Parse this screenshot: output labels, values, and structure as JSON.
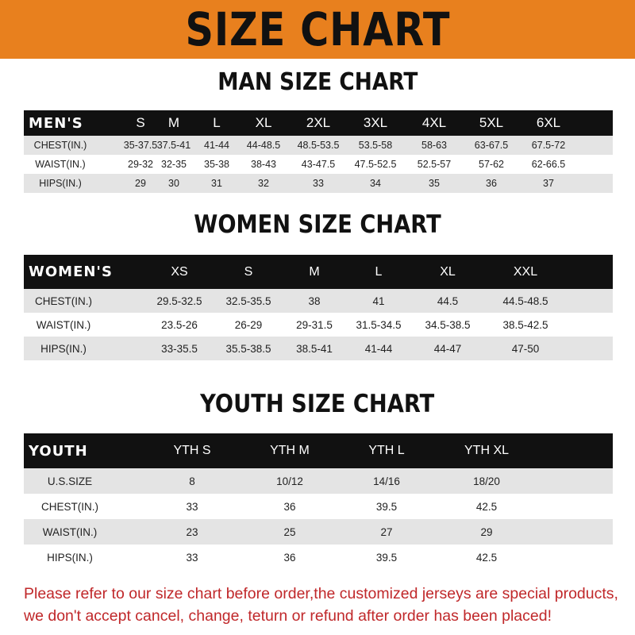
{
  "banner": {
    "title": "SIZE CHART",
    "background": "#e8801e"
  },
  "men": {
    "title": "MAN SIZE CHART",
    "header": [
      "MEN'S",
      "S",
      "M",
      "L",
      "XL",
      "2XL",
      "3XL",
      "4XL",
      "5XL",
      "6XL"
    ],
    "rows": [
      [
        "CHEST(IN.)",
        "35-37.5",
        "37.5-41",
        "41-44",
        "44-48.5",
        "48.5-53.5",
        "53.5-58",
        "58-63",
        "63-67.5",
        "67.5-72"
      ],
      [
        "WAIST(IN.)",
        "29-32",
        "32-35",
        "35-38",
        "38-43",
        "43-47.5",
        "47.5-52.5",
        "52.5-57",
        "57-62",
        "62-66.5"
      ],
      [
        "HIPS(IN.)",
        "29",
        "30",
        "31",
        "32",
        "33",
        "34",
        "35",
        "36",
        "37"
      ]
    ]
  },
  "women": {
    "title": "WOMEN SIZE CHART",
    "header": [
      "WOMEN'S",
      "XS",
      "S",
      "M",
      "L",
      "XL",
      "XXL"
    ],
    "rows": [
      [
        "CHEST(IN.)",
        "29.5-32.5",
        "32.5-35.5",
        "38",
        "41",
        "44.5",
        "44.5-48.5"
      ],
      [
        "WAIST(IN.)",
        "23.5-26",
        "26-29",
        "29-31.5",
        "31.5-34.5",
        "34.5-38.5",
        "38.5-42.5"
      ],
      [
        "HIPS(IN.)",
        "33-35.5",
        "35.5-38.5",
        "38.5-41",
        "41-44",
        "44-47",
        "47-50"
      ]
    ]
  },
  "youth": {
    "title": "YOUTH SIZE CHART",
    "header": [
      "YOUTH",
      "YTH S",
      "YTH M",
      "YTH L",
      "YTH XL"
    ],
    "rows": [
      [
        "U.S.SIZE",
        "8",
        "10/12",
        "14/16",
        "18/20"
      ],
      [
        "CHEST(IN.)",
        "33",
        "36",
        "39.5",
        "42.5"
      ],
      [
        "WAIST(IN.)",
        "23",
        "25",
        "27",
        "29"
      ],
      [
        "HIPS(IN.)",
        "33",
        "36",
        "39.5",
        "42.5"
      ]
    ]
  },
  "footer": {
    "line1": "Please refer to our size chart before order,the customized jerseys are special products,",
    "line2": "we don't accept cancel, change, teturn or refund after order has been placed!",
    "color": "#c0282a"
  }
}
